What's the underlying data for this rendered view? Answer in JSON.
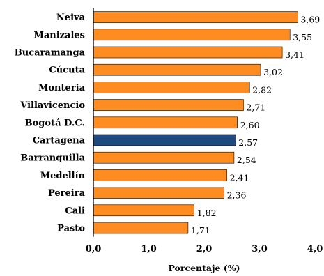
{
  "chart_data": {
    "type": "bar",
    "orientation": "horizontal",
    "categories": [
      "Neiva",
      "Manizales",
      "Bucaramanga",
      "Cúcuta",
      "Monteria",
      "Villavicencio",
      "Bogotá D.C.",
      "Cartagena",
      "Barranquilla",
      "Medellín",
      "Pereira",
      "Cali",
      "Pasto"
    ],
    "values": [
      3.69,
      3.55,
      3.41,
      3.02,
      2.82,
      2.71,
      2.6,
      2.57,
      2.54,
      2.41,
      2.36,
      1.82,
      1.71
    ],
    "value_labels": [
      "3,69",
      "3,55",
      "3,41",
      "3,02",
      "2,82",
      "2,71",
      "2,60",
      "2,57",
      "2,54",
      "2,41",
      "2,36",
      "1,82",
      "1,71"
    ],
    "highlight_category": "Cartagena",
    "colors": {
      "default_bar": "#FF8C21",
      "highlight_bar": "#1F4A7F",
      "bar_edge": "#000000"
    },
    "xlim": [
      0,
      4
    ],
    "xticks": [
      0,
      1,
      2,
      3,
      4
    ],
    "xtick_labels": [
      "0,0",
      "1,0",
      "2,0",
      "3,0",
      "4,0"
    ],
    "xlabel": "Porcentaje (%)",
    "ylabel": "",
    "title": "",
    "grid": false,
    "legend": "none"
  }
}
